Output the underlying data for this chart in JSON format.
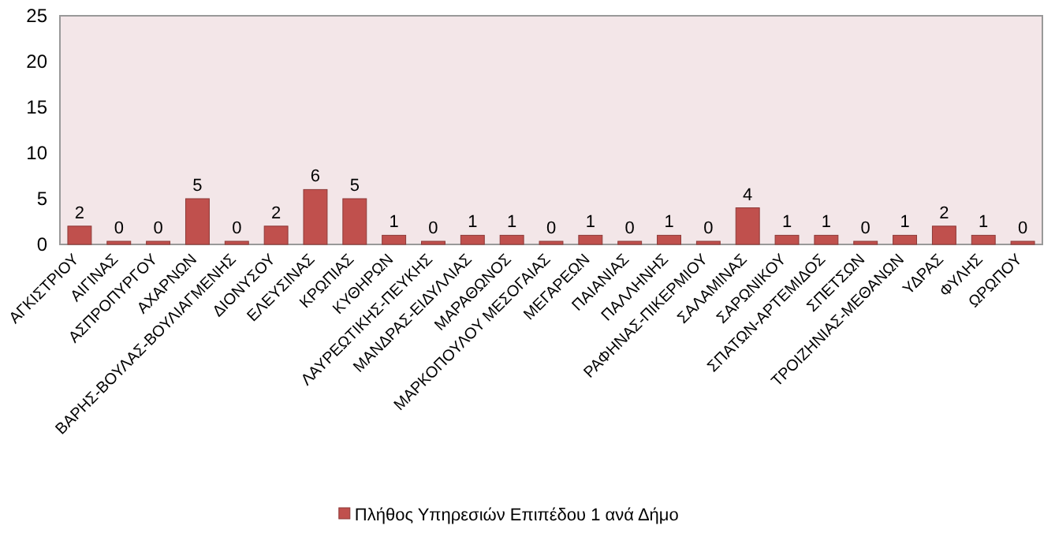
{
  "chart_data": {
    "type": "bar",
    "categories": [
      "ΑΓΚΙΣΤΡΙΟΥ",
      "ΑΙΓΙΝΑΣ",
      "ΑΣΠΡΟΠΥΡΓΟΥ",
      "ΑΧΑΡΝΩΝ",
      "ΒΑΡΗΣ-ΒΟΥΛΑΣ-ΒΟΥΛΙΑΓΜΕΝΗΣ",
      "ΔΙΟΝΥΣΟΥ",
      "ΕΛΕΥΣΙΝΑΣ",
      "ΚΡΩΠΙΑΣ",
      "ΚΥΘΗΡΩΝ",
      "ΛΑΥΡΕΩΤΙΚΗΣ-ΠΕΥΚΗΣ",
      "ΜΑΝΔΡΑΣ-ΕΙΔΥΛΛΙΑΣ",
      "ΜΑΡΑΘΩΝΟΣ",
      "ΜΑΡΚΟΠΟΥΛΟΥ ΜΕΣΟΓΑΙΑΣ",
      "ΜΕΓΑΡΕΩΝ",
      "ΠΑΙΑΝΙΑΣ",
      "ΠΑΛΛΗΝΗΣ",
      "ΡΑΦΗΝΑΣ-ΠΙΚΕΡΜΙΟΥ",
      "ΣΑΛΑΜΙΝΑΣ",
      "ΣΑΡΩΝΙΚΟΥ",
      "ΣΠΑΤΩΝ-ΑΡΤΕΜΙΔΟΣ",
      "ΣΠΕΤΣΩΝ",
      "ΤΡΟΙΖΗΝΙΑΣ-ΜΕΘΑΝΩΝ",
      "ΥΔΡΑΣ",
      "ΦΥΛΗΣ",
      "ΩΡΩΠΟΥ"
    ],
    "series": [
      {
        "name": "Πλήθος Υπηρεσιών Επιπέδου 1 ανά Δήμο",
        "color": "#c0504d",
        "values": [
          2,
          0,
          0,
          5,
          0,
          2,
          6,
          5,
          1,
          0,
          1,
          1,
          0,
          1,
          0,
          1,
          0,
          4,
          1,
          1,
          0,
          1,
          2,
          1,
          0
        ]
      }
    ],
    "ylim": [
      0,
      25
    ],
    "yticks": [
      0,
      5,
      10,
      15,
      20,
      25
    ],
    "data_labels": true,
    "grid": false,
    "legend": "bottom"
  }
}
